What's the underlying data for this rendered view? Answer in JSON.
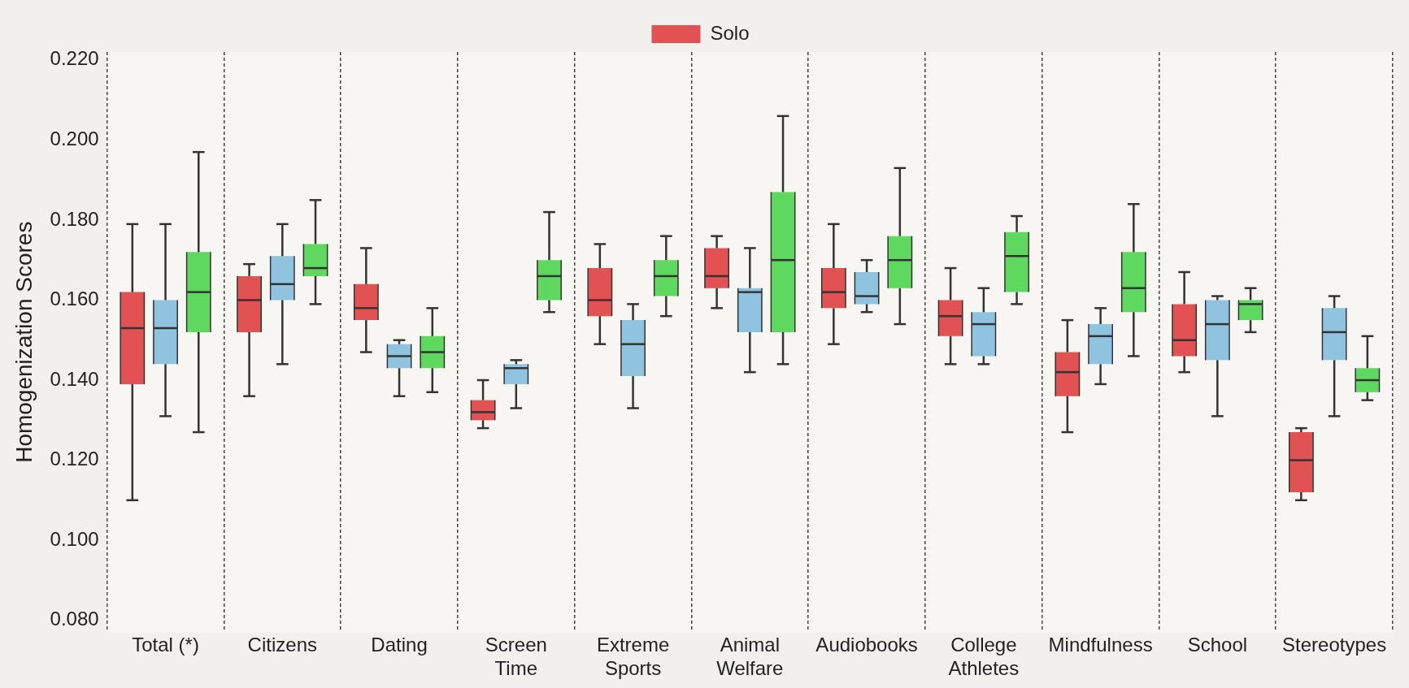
{
  "chart_data": {
    "type": "box",
    "ylabel": "Homogenization Scores",
    "categories": [
      "Total (*)",
      "Citizens",
      "Dating",
      "Screen Time",
      "Extreme Sports",
      "Animal Welfare",
      "Audiobooks",
      "College Athletes",
      "Mindfulness",
      "School",
      "Stereotypes"
    ],
    "ylim": [
      0.077,
      0.222
    ],
    "yticks": [
      {
        "value": 0.08,
        "label": "0.080"
      },
      {
        "value": 0.1,
        "label": "0.100"
      },
      {
        "value": 0.12,
        "label": "0.120"
      },
      {
        "value": 0.14,
        "label": "0.140"
      },
      {
        "value": 0.16,
        "label": "0.160"
      },
      {
        "value": 0.18,
        "label": "0.180"
      },
      {
        "value": 0.2,
        "label": "0.200"
      },
      {
        "value": 0.22,
        "label": "0.220"
      }
    ],
    "grid": "x",
    "legend": "top",
    "series": [
      {
        "name": "Solo",
        "color": "#e35252",
        "boxes": [
          {
            "low": 0.11,
            "q1": 0.139,
            "median": 0.153,
            "q3": 0.162,
            "high": 0.179
          },
          {
            "low": 0.136,
            "q1": 0.152,
            "median": 0.16,
            "q3": 0.166,
            "high": 0.169
          },
          {
            "low": 0.147,
            "q1": 0.155,
            "median": 0.158,
            "q3": 0.164,
            "high": 0.173
          },
          {
            "low": 0.128,
            "q1": 0.13,
            "median": 0.132,
            "q3": 0.135,
            "high": 0.14
          },
          {
            "low": 0.149,
            "q1": 0.156,
            "median": 0.16,
            "q3": 0.168,
            "high": 0.174
          },
          {
            "low": 0.158,
            "q1": 0.163,
            "median": 0.166,
            "q3": 0.173,
            "high": 0.176
          },
          {
            "low": 0.149,
            "q1": 0.158,
            "median": 0.162,
            "q3": 0.168,
            "high": 0.179
          },
          {
            "low": 0.144,
            "q1": 0.151,
            "median": 0.156,
            "q3": 0.16,
            "high": 0.168
          },
          {
            "low": 0.127,
            "q1": 0.136,
            "median": 0.142,
            "q3": 0.147,
            "high": 0.155
          },
          {
            "low": 0.142,
            "q1": 0.146,
            "median": 0.15,
            "q3": 0.159,
            "high": 0.167
          },
          {
            "low": 0.11,
            "q1": 0.112,
            "median": 0.12,
            "q3": 0.127,
            "high": 0.128
          }
        ]
      },
      {
        "color": "#8fc3e0",
        "boxes": [
          {
            "low": 0.131,
            "q1": 0.144,
            "median": 0.153,
            "q3": 0.16,
            "high": 0.179
          },
          {
            "low": 0.144,
            "q1": 0.16,
            "median": 0.164,
            "q3": 0.171,
            "high": 0.179
          },
          {
            "low": 0.136,
            "q1": 0.143,
            "median": 0.146,
            "q3": 0.149,
            "high": 0.15
          },
          {
            "low": 0.133,
            "q1": 0.139,
            "median": 0.143,
            "q3": 0.144,
            "high": 0.145
          },
          {
            "low": 0.133,
            "q1": 0.141,
            "median": 0.149,
            "q3": 0.155,
            "high": 0.159
          },
          {
            "low": 0.142,
            "q1": 0.152,
            "median": 0.162,
            "q3": 0.163,
            "high": 0.173
          },
          {
            "low": 0.157,
            "q1": 0.159,
            "median": 0.161,
            "q3": 0.167,
            "high": 0.17
          },
          {
            "low": 0.144,
            "q1": 0.146,
            "median": 0.154,
            "q3": 0.157,
            "high": 0.163
          },
          {
            "low": 0.139,
            "q1": 0.144,
            "median": 0.151,
            "q3": 0.154,
            "high": 0.158
          },
          {
            "low": 0.131,
            "q1": 0.145,
            "median": 0.154,
            "q3": 0.16,
            "high": 0.161
          },
          {
            "low": 0.131,
            "q1": 0.145,
            "median": 0.152,
            "q3": 0.158,
            "high": 0.161
          }
        ]
      },
      {
        "color": "#5fd85f",
        "boxes": [
          {
            "low": 0.127,
            "q1": 0.152,
            "median": 0.162,
            "q3": 0.172,
            "high": 0.197
          },
          {
            "low": 0.159,
            "q1": 0.166,
            "median": 0.168,
            "q3": 0.174,
            "high": 0.185
          },
          {
            "low": 0.137,
            "q1": 0.143,
            "median": 0.147,
            "q3": 0.151,
            "high": 0.158
          },
          {
            "low": 0.157,
            "q1": 0.16,
            "median": 0.166,
            "q3": 0.17,
            "high": 0.182
          },
          {
            "low": 0.156,
            "q1": 0.161,
            "median": 0.166,
            "q3": 0.17,
            "high": 0.176
          },
          {
            "low": 0.144,
            "q1": 0.152,
            "median": 0.17,
            "q3": 0.187,
            "high": 0.206
          },
          {
            "low": 0.154,
            "q1": 0.163,
            "median": 0.17,
            "q3": 0.176,
            "high": 0.193
          },
          {
            "low": 0.159,
            "q1": 0.162,
            "median": 0.171,
            "q3": 0.177,
            "high": 0.181
          },
          {
            "low": 0.146,
            "q1": 0.157,
            "median": 0.163,
            "q3": 0.172,
            "high": 0.184
          },
          {
            "low": 0.152,
            "q1": 0.155,
            "median": 0.159,
            "q3": 0.16,
            "high": 0.163
          },
          {
            "low": 0.135,
            "q1": 0.137,
            "median": 0.14,
            "q3": 0.143,
            "high": 0.151
          }
        ]
      }
    ]
  }
}
